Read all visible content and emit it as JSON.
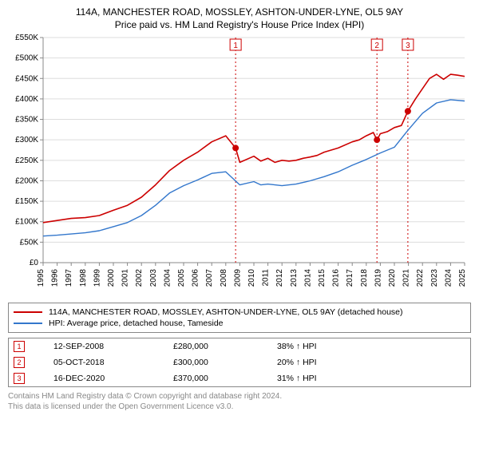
{
  "title_line1": "114A, MANCHESTER ROAD, MOSSLEY, ASHTON-UNDER-LYNE, OL5 9AY",
  "title_line2": "Price paid vs. HM Land Registry's House Price Index (HPI)",
  "chart": {
    "type": "line",
    "background_color": "#ffffff",
    "grid_color": "#dddddd",
    "axis_color": "#888888",
    "title_fontsize": 12,
    "label_fontsize": 10,
    "x": {
      "min": 1995,
      "max": 2025,
      "ticks": [
        1995,
        1996,
        1997,
        1998,
        1999,
        2000,
        2001,
        2002,
        2003,
        2004,
        2005,
        2006,
        2007,
        2008,
        2009,
        2010,
        2011,
        2012,
        2013,
        2014,
        2015,
        2016,
        2017,
        2018,
        2019,
        2020,
        2021,
        2022,
        2023,
        2024,
        2025
      ]
    },
    "y": {
      "min": 0,
      "max": 550,
      "ticks": [
        0,
        50,
        100,
        150,
        200,
        250,
        300,
        350,
        400,
        450,
        500,
        550
      ],
      "tick_labels": [
        "£0",
        "£50K",
        "£100K",
        "£150K",
        "£200K",
        "£250K",
        "£300K",
        "£350K",
        "£400K",
        "£450K",
        "£500K",
        "£550K"
      ]
    },
    "series": [
      {
        "key": "property",
        "label": "114A, MANCHESTER ROAD, MOSSLEY, ASHTON-UNDER-LYNE, OL5 9AY (detached house)",
        "color": "#cc0000",
        "line_width": 1.6,
        "points": [
          [
            1995,
            98
          ],
          [
            1996,
            103
          ],
          [
            1997,
            108
          ],
          [
            1998,
            110
          ],
          [
            1999,
            115
          ],
          [
            2000,
            128
          ],
          [
            2001,
            140
          ],
          [
            2002,
            160
          ],
          [
            2003,
            190
          ],
          [
            2004,
            225
          ],
          [
            2005,
            250
          ],
          [
            2006,
            270
          ],
          [
            2007,
            295
          ],
          [
            2008,
            310
          ],
          [
            2008.7,
            280
          ],
          [
            2009,
            245
          ],
          [
            2010,
            260
          ],
          [
            2010.5,
            248
          ],
          [
            2011,
            255
          ],
          [
            2011.5,
            245
          ],
          [
            2012,
            250
          ],
          [
            2012.5,
            248
          ],
          [
            2013,
            250
          ],
          [
            2013.5,
            255
          ],
          [
            2014,
            258
          ],
          [
            2014.5,
            262
          ],
          [
            2015,
            270
          ],
          [
            2016,
            280
          ],
          [
            2017,
            295
          ],
          [
            2017.5,
            300
          ],
          [
            2018,
            310
          ],
          [
            2018.5,
            318
          ],
          [
            2018.76,
            300
          ],
          [
            2019,
            315
          ],
          [
            2019.5,
            320
          ],
          [
            2020,
            330
          ],
          [
            2020.5,
            335
          ],
          [
            2020.96,
            370
          ],
          [
            2021.5,
            400
          ],
          [
            2022,
            425
          ],
          [
            2022.5,
            450
          ],
          [
            2023,
            460
          ],
          [
            2023.5,
            448
          ],
          [
            2024,
            460
          ],
          [
            2024.5,
            458
          ],
          [
            2025,
            455
          ]
        ]
      },
      {
        "key": "hpi",
        "label": "HPI: Average price, detached house, Tameside",
        "color": "#3377cc",
        "line_width": 1.4,
        "points": [
          [
            1995,
            65
          ],
          [
            1996,
            67
          ],
          [
            1997,
            70
          ],
          [
            1998,
            73
          ],
          [
            1999,
            78
          ],
          [
            2000,
            88
          ],
          [
            2001,
            98
          ],
          [
            2002,
            115
          ],
          [
            2003,
            140
          ],
          [
            2004,
            170
          ],
          [
            2005,
            188
          ],
          [
            2006,
            202
          ],
          [
            2007,
            218
          ],
          [
            2008,
            222
          ],
          [
            2009,
            190
          ],
          [
            2010,
            198
          ],
          [
            2010.5,
            190
          ],
          [
            2011,
            192
          ],
          [
            2012,
            188
          ],
          [
            2013,
            192
          ],
          [
            2014,
            200
          ],
          [
            2015,
            210
          ],
          [
            2016,
            222
          ],
          [
            2017,
            238
          ],
          [
            2018,
            252
          ],
          [
            2019,
            268
          ],
          [
            2020,
            282
          ],
          [
            2021,
            325
          ],
          [
            2022,
            365
          ],
          [
            2023,
            390
          ],
          [
            2024,
            398
          ],
          [
            2025,
            395
          ]
        ]
      }
    ],
    "events": [
      {
        "n": "1",
        "x": 2008.7,
        "y_dot": 280
      },
      {
        "n": "2",
        "x": 2018.76,
        "y_dot": 300
      },
      {
        "n": "3",
        "x": 2020.96,
        "y_dot": 370
      }
    ],
    "event_line_color": "#cc0000",
    "event_line_dash": "2,3",
    "event_dot_color": "#cc0000",
    "event_marker_border": "#cc0000",
    "event_marker_fill": "#ffffff",
    "event_marker_text": "#cc0000"
  },
  "legend": {
    "items": [
      {
        "color": "#cc0000",
        "label_key": "chart.series.0.label"
      },
      {
        "color": "#3377cc",
        "label_key": "chart.series.1.label"
      }
    ]
  },
  "sales": [
    {
      "n": "1",
      "date": "12-SEP-2008",
      "price": "£280,000",
      "diff": "38% ↑ HPI"
    },
    {
      "n": "2",
      "date": "05-OCT-2018",
      "price": "£300,000",
      "diff": "20% ↑ HPI"
    },
    {
      "n": "3",
      "date": "16-DEC-2020",
      "price": "£370,000",
      "diff": "31% ↑ HPI"
    }
  ],
  "footnote_line1": "Contains HM Land Registry data © Crown copyright and database right 2024.",
  "footnote_line2": "This data is licensed under the Open Government Licence v3.0."
}
